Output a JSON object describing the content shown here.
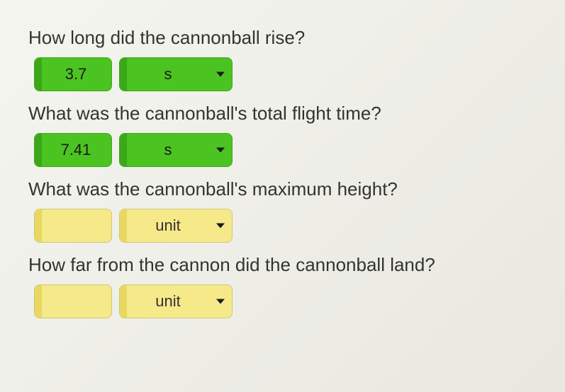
{
  "questions": [
    {
      "text": "How long did the cannonball rise?",
      "value": "3.7",
      "unit": "s",
      "status": "correct"
    },
    {
      "text": "What was the cannonball's total flight time?",
      "value": "7.41",
      "unit": "s",
      "status": "correct"
    },
    {
      "text": "What was the cannonball's maximum height?",
      "value": "",
      "unit": "unit",
      "status": "pending"
    },
    {
      "text": "How far from the cannon did the cannonball land?",
      "value": "",
      "unit": "unit",
      "status": "pending"
    }
  ],
  "colors": {
    "correct_bg": "#4bc421",
    "correct_accent": "#3aa818",
    "pending_bg": "#f5e98a",
    "pending_accent": "#e8d860",
    "text": "#333333",
    "background": "#f5f5f0"
  }
}
